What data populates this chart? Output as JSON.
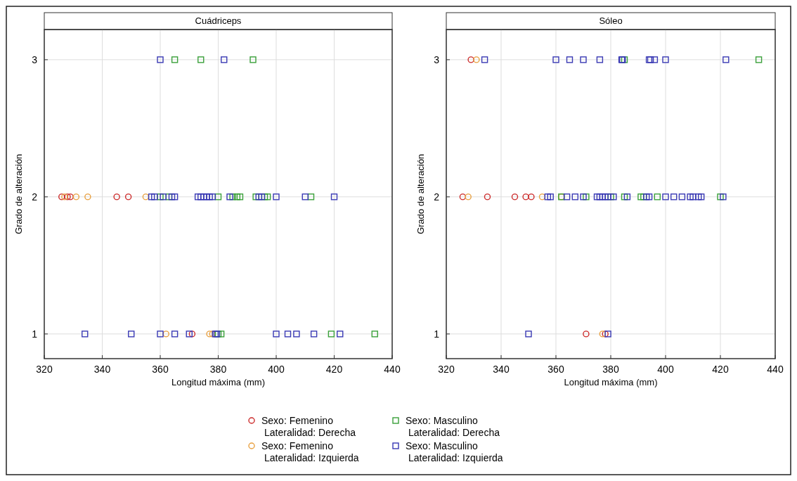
{
  "chart_data": [
    {
      "type": "scatter",
      "title": "Cuádriceps",
      "xlabel": "Longitud máxima (mm)",
      "ylabel": "Grado de alteración",
      "xlim": [
        320,
        440
      ],
      "xticks": [
        320,
        340,
        360,
        380,
        400,
        420,
        440
      ],
      "ylim": [
        0.82,
        3.22
      ],
      "yticks": [
        1,
        2,
        3
      ],
      "grid": true,
      "legend": "bottom",
      "series": [
        {
          "name": "Sexo: Femenino\nLateralidad: Derecha",
          "color": "#cc2a2a",
          "marker": "circle",
          "x": [
            371,
            326,
            328,
            329,
            345,
            349
          ],
          "values": [
            1,
            2,
            2,
            2,
            2,
            2
          ]
        },
        {
          "name": "Sexo: Femenino\nLateralidad: Izquierda",
          "color": "#e8a040",
          "marker": "circle",
          "x": [
            362,
            377,
            378,
            327,
            331,
            335,
            355
          ],
          "values": [
            1,
            1,
            1,
            2,
            2,
            2,
            2
          ]
        },
        {
          "name": "Sexo: Masculino\nLateralidad: Derecha",
          "color": "#3aa03a",
          "marker": "square",
          "x": [
            365,
            374,
            392,
            380,
            381,
            419,
            434,
            360,
            363,
            380,
            385,
            386.5,
            387.5,
            393,
            396,
            397,
            412
          ],
          "values": [
            3,
            3,
            3,
            1,
            1,
            1,
            1,
            2,
            2,
            2,
            2,
            2,
            2,
            2,
            2,
            2,
            2
          ]
        },
        {
          "name": "Sexo: Masculino\nLateralidad: Izquierda",
          "color": "#3a3ab4",
          "marker": "square",
          "x": [
            360,
            382,
            334,
            350,
            360,
            365,
            370,
            379,
            379.5,
            400,
            404,
            407,
            413,
            422,
            357,
            358,
            361,
            364,
            365,
            373,
            374,
            375,
            376,
            377,
            378,
            384,
            394,
            395,
            400,
            410,
            420
          ],
          "values": [
            3,
            3,
            1,
            1,
            1,
            1,
            1,
            1,
            1,
            1,
            1,
            1,
            1,
            1,
            2,
            2,
            2,
            2,
            2,
            2,
            2,
            2,
            2,
            2,
            2,
            2,
            2,
            2,
            2,
            2,
            2
          ]
        }
      ]
    },
    {
      "type": "scatter",
      "title": "Sóleo",
      "xlabel": "Longitud máxima (mm)",
      "ylabel": "Grado de alteración",
      "xlim": [
        320,
        440
      ],
      "xticks": [
        320,
        340,
        360,
        380,
        400,
        420,
        440
      ],
      "ylim": [
        0.82,
        3.22
      ],
      "yticks": [
        1,
        2,
        3
      ],
      "grid": true,
      "series": [
        {
          "color": "#cc2a2a",
          "marker": "circle",
          "x": [
            329,
            371,
            378,
            326,
            335,
            345,
            349,
            351
          ],
          "values": [
            3,
            1,
            1,
            2,
            2,
            2,
            2,
            2
          ]
        },
        {
          "color": "#e8a040",
          "marker": "circle",
          "x": [
            331,
            377,
            328,
            355,
            362
          ],
          "values": [
            3,
            1,
            2,
            2,
            2
          ]
        },
        {
          "color": "#3aa03a",
          "marker": "square",
          "x": [
            385,
            434,
            362,
            371,
            380,
            385,
            391,
            392,
            397,
            420
          ],
          "values": [
            3,
            3,
            2,
            2,
            2,
            2,
            2,
            2,
            2,
            2
          ]
        },
        {
          "color": "#3a3ab4",
          "marker": "square",
          "x": [
            334,
            360,
            365,
            370,
            376,
            384,
            384.3,
            394,
            394.5,
            396,
            400,
            422,
            350,
            379,
            357,
            358,
            364,
            367,
            370,
            375,
            376,
            377,
            378,
            379,
            381,
            386,
            393,
            394,
            400,
            403,
            406,
            409,
            410,
            412,
            413,
            421
          ],
          "values": [
            3,
            3,
            3,
            3,
            3,
            3,
            3,
            3,
            3,
            3,
            3,
            3,
            1,
            1,
            2,
            2,
            2,
            2,
            2,
            2,
            2,
            2,
            2,
            2,
            2,
            2,
            2,
            2,
            2,
            2,
            2,
            2,
            2,
            2,
            2,
            2
          ]
        }
      ]
    }
  ]
}
